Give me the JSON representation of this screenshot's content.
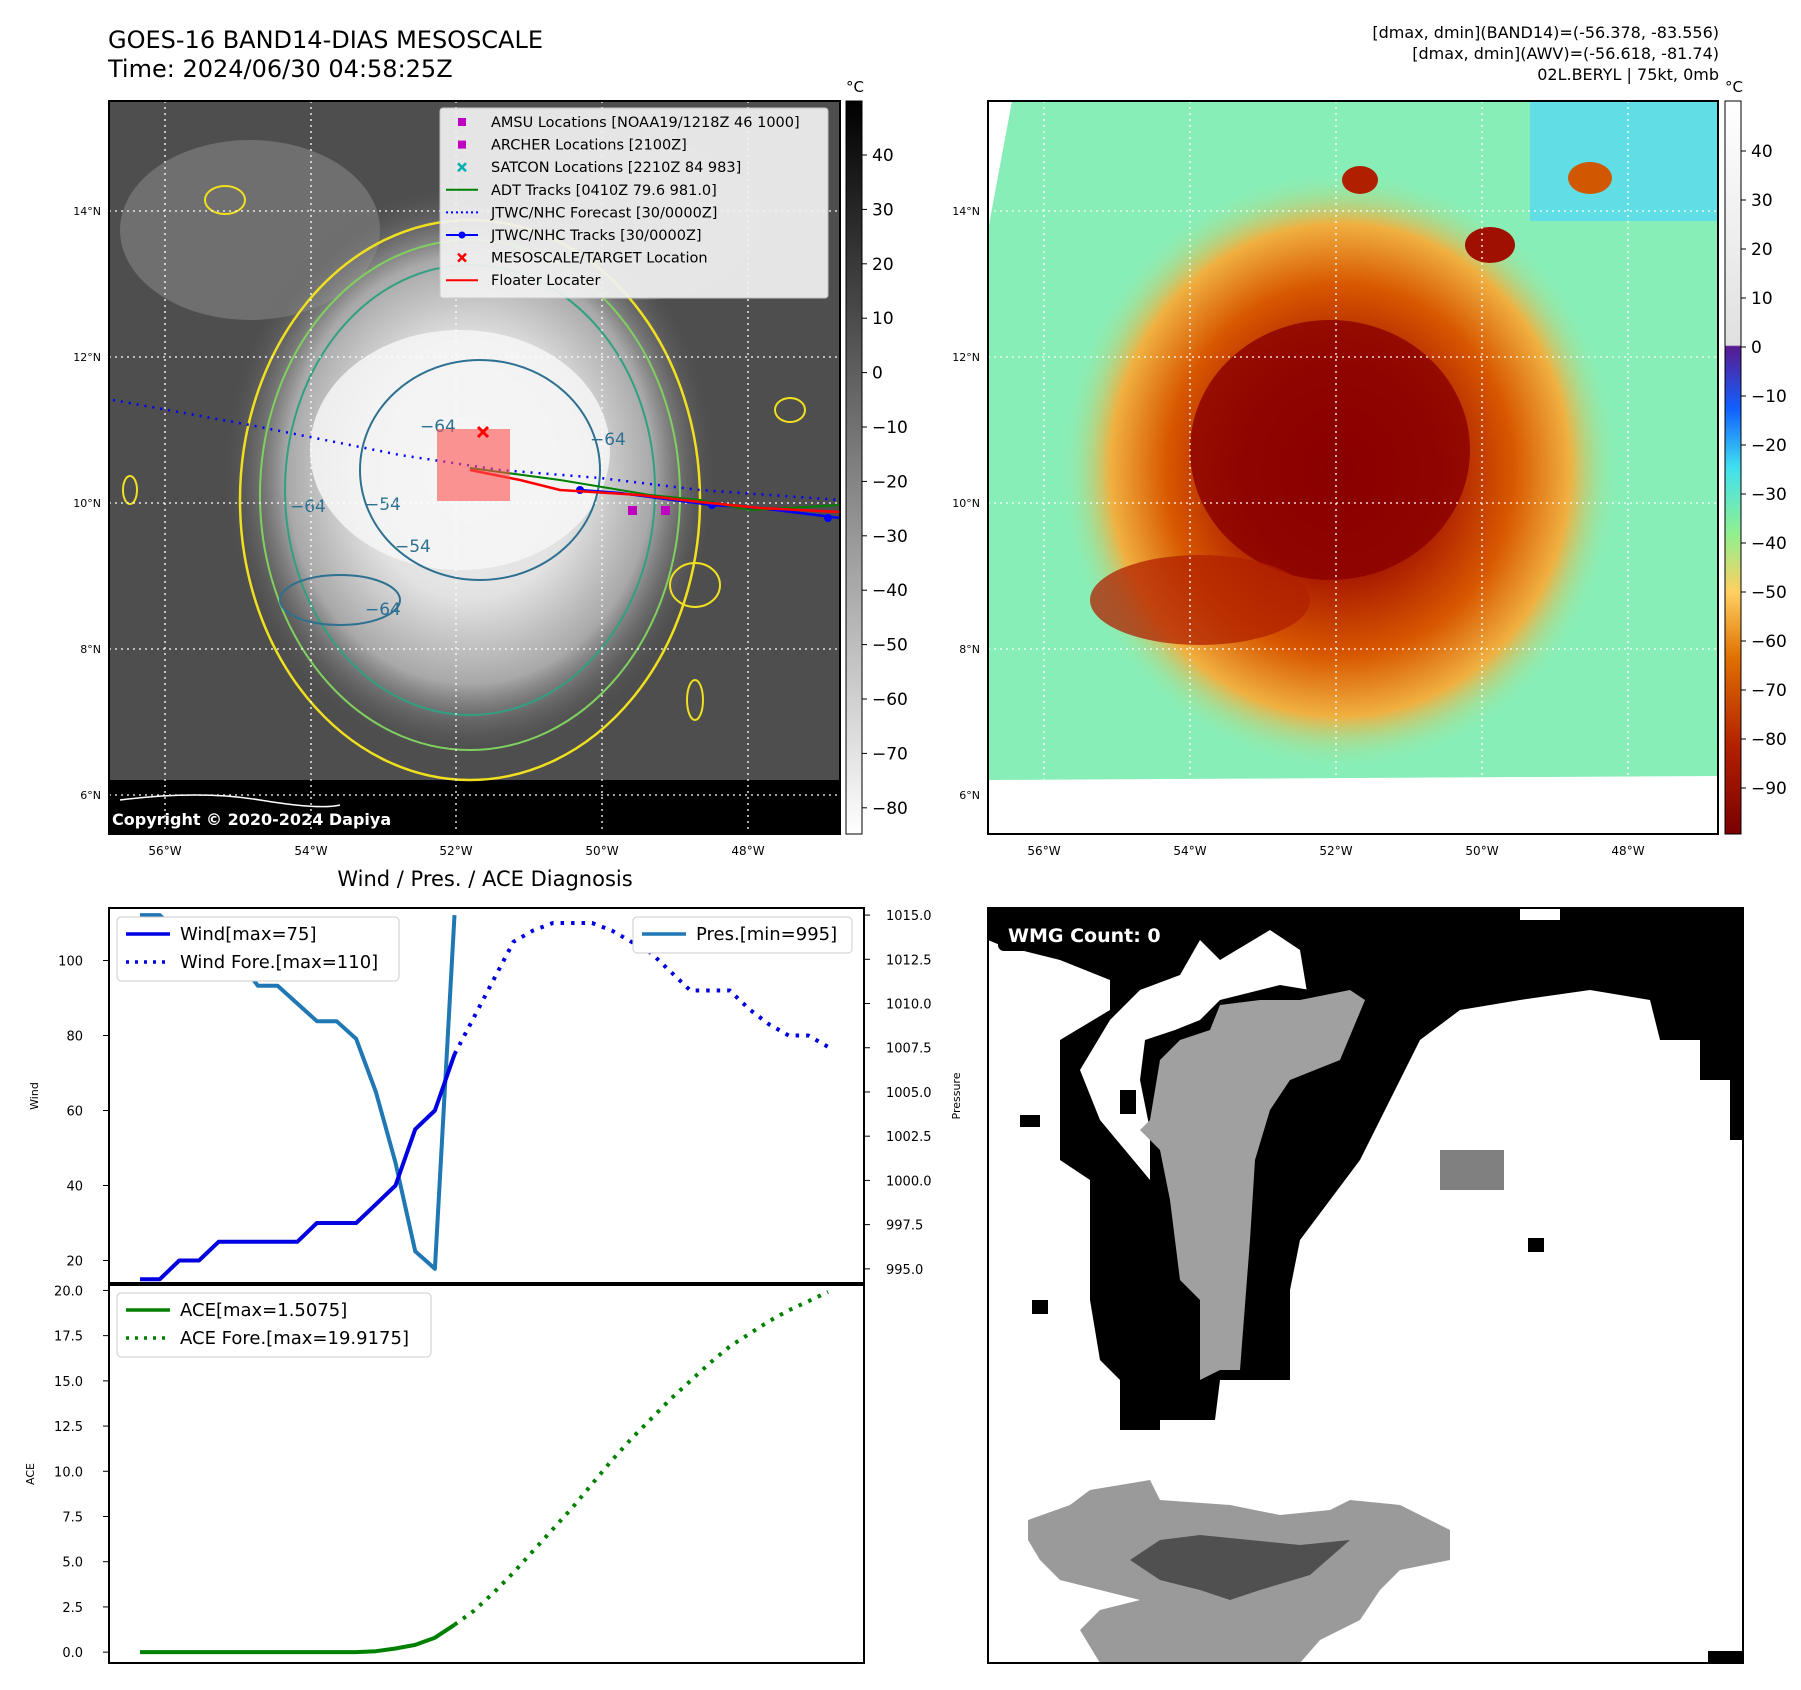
{
  "header": {
    "title_line1": "GOES-16 BAND14-DIAS MESOSCALE",
    "title_line2": "Time: 2024/06/30 04:58:25Z",
    "info_line1": "[dmax, dmin](BAND14)=(-56.378, -83.556)",
    "info_line2": "[dmax, dmin](AWV)=(-56.618, -81.74)",
    "info_line3": "02L.BERYL | 75kt, 0mb"
  },
  "map_common": {
    "lat_labels": [
      "14°N",
      "12°N",
      "10°N",
      "8°N",
      "6°N"
    ],
    "lon_labels": [
      "56°W",
      "54°W",
      "52°W",
      "50°W",
      "48°W"
    ],
    "copyright": "Copyright © 2020-2024 Dapiya"
  },
  "ir_panel": {
    "colorbar_unit": "°C",
    "colorbar_ticks": [
      "40",
      "30",
      "20",
      "10",
      "0",
      "−10",
      "−20",
      "−30",
      "−40",
      "−50",
      "−60",
      "−70",
      "−80"
    ],
    "contour_labels": [
      "−64",
      "−54",
      "−64",
      "−64",
      "−54",
      "−64"
    ],
    "legend": [
      {
        "label": "AMSU Locations [NOAA19/1218Z 46 1000]",
        "marker": "square",
        "color": "#c000c0"
      },
      {
        "label": "ARCHER Locations [2100Z]",
        "marker": "square",
        "color": "#c000c0"
      },
      {
        "label": "SATCON Locations [2210Z 84 983]",
        "marker": "x",
        "color": "#00b0b0"
      },
      {
        "label": "ADT Tracks [0410Z 79.6 981.0]",
        "marker": "line",
        "color": "#008000"
      },
      {
        "label": "JTWC/NHC Forecast [30/0000Z]",
        "marker": "dotted",
        "color": "#0000ff"
      },
      {
        "label": "JTWC/NHC Tracks [30/0000Z]",
        "marker": "line-dot",
        "color": "#0000ff"
      },
      {
        "label": "MESOSCALE/TARGET Location",
        "marker": "x",
        "color": "#ff0000"
      },
      {
        "label": "Floater Locater",
        "marker": "line",
        "color": "#ff0000"
      }
    ]
  },
  "awv_panel": {
    "colorbar_unit": "°C",
    "colorbar_ticks": [
      "40",
      "30",
      "20",
      "10",
      "0",
      "−10",
      "−20",
      "−30",
      "−40",
      "−50",
      "−60",
      "−70",
      "−80",
      "−90"
    ]
  },
  "wmg_panel": {
    "label": "WMG Count: 0"
  },
  "diagnosis": {
    "title": "Wind / Pres. / ACE Diagnosis",
    "wind_ylabel": "Wind",
    "pres_ylabel": "Pressure",
    "ace_ylabel": "ACE",
    "wind_ticks": [
      "20",
      "40",
      "60",
      "80",
      "100"
    ],
    "pres_ticks": [
      "995.0",
      "997.5",
      "1000.0",
      "1002.5",
      "1005.0",
      "1007.5",
      "1010.0",
      "1012.5",
      "1015.0"
    ],
    "ace_ticks": [
      "0.0",
      "2.5",
      "5.0",
      "7.5",
      "10.0",
      "12.5",
      "15.0",
      "17.5",
      "20.0"
    ],
    "legend_wind": "Wind[max=75]",
    "legend_wind_fore": "Wind Fore.[max=110]",
    "legend_pres": "Pres.[min=995]",
    "legend_ace": "ACE[max=1.5075]",
    "legend_ace_fore": "ACE Fore.[max=19.9175]",
    "colors": {
      "wind": "#0000e0",
      "pres": "#1f77b4",
      "ace": "#008000"
    }
  },
  "chart_data": [
    {
      "type": "line",
      "title": "Wind / Pres. / ACE Diagnosis",
      "ylabel": "Wind",
      "ylim": [
        14,
        114
      ],
      "series": [
        {
          "name": "Wind[max=75]",
          "x": [
            0,
            1,
            2,
            3,
            4,
            5,
            6,
            7,
            8,
            9,
            10,
            11,
            12,
            13,
            14,
            15,
            16
          ],
          "values": [
            15,
            15,
            20,
            20,
            25,
            25,
            25,
            25,
            25,
            30,
            30,
            30,
            35,
            40,
            55,
            60,
            75
          ]
        },
        {
          "name": "Wind Fore.[max=110]",
          "x": [
            16,
            17,
            18,
            19,
            20,
            21,
            22,
            23,
            24,
            25,
            26,
            27,
            28,
            29,
            30,
            31,
            32,
            33,
            34,
            35
          ],
          "values": [
            75,
            85,
            95,
            105,
            108,
            110,
            110,
            110,
            108,
            105,
            102,
            97,
            92,
            92,
            92,
            87,
            83,
            80,
            80,
            77
          ]
        }
      ]
    },
    {
      "type": "line",
      "ylabel": "Pressure",
      "ylim": [
        994.2,
        1015.4
      ],
      "series": [
        {
          "name": "Pres.[min=995]",
          "x": [
            0,
            1,
            2,
            3,
            4,
            5,
            6,
            7,
            8,
            9,
            10,
            11,
            12,
            13,
            14,
            15,
            16
          ],
          "values": [
            1015,
            1015,
            1014,
            1013,
            1013,
            1012.5,
            1011,
            1011,
            1010,
            1009,
            1009,
            1008,
            1005,
            1001,
            996,
            995,
            1015
          ]
        }
      ]
    },
    {
      "type": "line",
      "ylabel": "ACE",
      "ylim": [
        -0.6,
        20.3
      ],
      "series": [
        {
          "name": "ACE[max=1.5075]",
          "x": [
            0,
            1,
            2,
            3,
            4,
            5,
            6,
            7,
            8,
            9,
            10,
            11,
            12,
            13,
            14,
            15,
            16
          ],
          "values": [
            0,
            0,
            0,
            0,
            0,
            0,
            0,
            0,
            0,
            0,
            0,
            0,
            0.05,
            0.2,
            0.4,
            0.8,
            1.51
          ]
        },
        {
          "name": "ACE Fore.[max=19.9175]",
          "x": [
            16,
            17,
            18,
            19,
            20,
            21,
            22,
            23,
            24,
            25,
            26,
            27,
            28,
            29,
            30,
            31,
            32,
            33,
            34,
            35
          ],
          "values": [
            1.51,
            2.3,
            3.3,
            4.4,
            5.6,
            6.8,
            8.0,
            9.3,
            10.6,
            11.8,
            12.9,
            14.0,
            15.0,
            16.0,
            16.9,
            17.6,
            18.3,
            18.9,
            19.4,
            19.92
          ]
        }
      ]
    }
  ]
}
